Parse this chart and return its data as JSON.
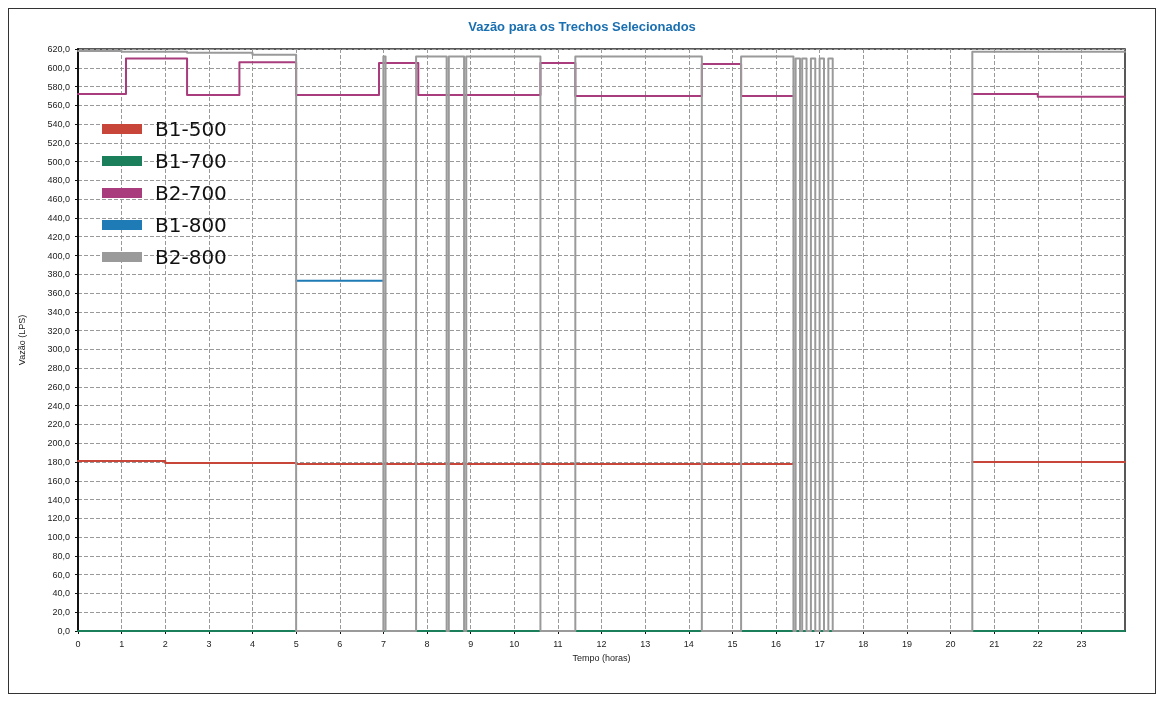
{
  "chart_data": {
    "type": "step",
    "title": "Vazão para os Trechos Selecionados",
    "xlabel": "Tempo (horas)",
    "ylabel": "Vazão (LPS)",
    "xlim": [
      0,
      24
    ],
    "xticks": [
      0,
      1,
      2,
      3,
      4,
      5,
      6,
      7,
      8,
      9,
      10,
      11,
      12,
      13,
      14,
      15,
      16,
      17,
      18,
      19,
      20,
      21,
      22,
      23
    ],
    "ylim": [
      0,
      620
    ],
    "yticks": [
      {
        "value": 0,
        "label": "0,0"
      },
      {
        "value": 20,
        "label": "20,0"
      },
      {
        "value": 40,
        "label": "40,0"
      },
      {
        "value": 60,
        "label": "60,0"
      },
      {
        "value": 80,
        "label": "80,0"
      },
      {
        "value": 100,
        "label": "100,0"
      },
      {
        "value": 120,
        "label": "120,0"
      },
      {
        "value": 140,
        "label": "140,0"
      },
      {
        "value": 160,
        "label": "160,0"
      },
      {
        "value": 180,
        "label": "180,0"
      },
      {
        "value": 200,
        "label": "200,0"
      },
      {
        "value": 220,
        "label": "220,0"
      },
      {
        "value": 240,
        "label": "240,0"
      },
      {
        "value": 260,
        "label": "260,0"
      },
      {
        "value": 280,
        "label": "280,0"
      },
      {
        "value": 300,
        "label": "300,0"
      },
      {
        "value": 320,
        "label": "320,0"
      },
      {
        "value": 340,
        "label": "340,0"
      },
      {
        "value": 360,
        "label": "360,0"
      },
      {
        "value": 380,
        "label": "380,0"
      },
      {
        "value": 400,
        "label": "400,0"
      },
      {
        "value": 420,
        "label": "420,0"
      },
      {
        "value": 440,
        "label": "440,0"
      },
      {
        "value": 460,
        "label": "460,0"
      },
      {
        "value": 480,
        "label": "480,0"
      },
      {
        "value": 500,
        "label": "500,0"
      },
      {
        "value": 520,
        "label": "520,0"
      },
      {
        "value": 540,
        "label": "540,0"
      },
      {
        "value": 560,
        "label": "560,0"
      },
      {
        "value": 580,
        "label": "580,0"
      },
      {
        "value": 600,
        "label": "600,0"
      },
      {
        "value": 620,
        "label": "620,0"
      }
    ],
    "grid": true,
    "legend": "top left",
    "marker": "none",
    "line_style": "solid",
    "series": [
      {
        "name": "B1-500",
        "color": "#c8453a",
        "x": [
          0,
          2,
          5,
          16.4,
          20.5,
          24
        ],
        "values": [
          181,
          179,
          178,
          null,
          180,
          180
        ]
      },
      {
        "name": "B1-700",
        "color": "#1a7f5a",
        "x": [
          0,
          24
        ],
        "values": [
          0,
          0
        ]
      },
      {
        "name": "B2-700",
        "color": "#a83c7c",
        "x": [
          0,
          1.1,
          2.5,
          3.7,
          5,
          6.9,
          7.8,
          10.6,
          11.4,
          14.3,
          15.2,
          16.4,
          20.5,
          22,
          24
        ],
        "values": [
          572,
          610,
          571,
          606,
          571,
          605,
          571,
          605,
          570,
          604,
          570,
          null,
          572,
          569,
          569
        ]
      },
      {
        "name": "B1-800",
        "color": "#1f7bb5",
        "x": [
          5,
          7
        ],
        "values": [
          373,
          373
        ]
      },
      {
        "name": "B2-800",
        "color": "#9a9a9a",
        "x": [
          0,
          1,
          2.5,
          4,
          5,
          7,
          7.05,
          7.75,
          8.45,
          8.5,
          8.85,
          8.9,
          10.6,
          11.4,
          14.3,
          15.2,
          16.4,
          16.45,
          16.55,
          16.6,
          16.7,
          16.8,
          16.9,
          17.0,
          17.1,
          17.2,
          17.3,
          20.5,
          24
        ],
        "values": [
          618,
          617,
          616,
          614,
          0,
          612,
          0,
          612,
          0,
          612,
          0,
          612,
          0,
          612,
          0,
          612,
          0,
          610,
          0,
          610,
          0,
          610,
          0,
          610,
          0,
          610,
          0,
          617,
          617
        ]
      }
    ]
  }
}
